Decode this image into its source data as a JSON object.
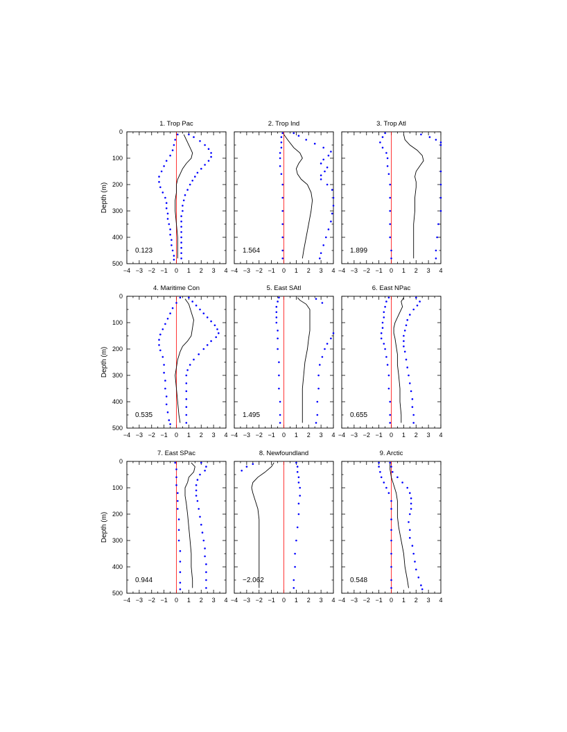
{
  "chart_data": {
    "type": "line",
    "layout": "3x3 panels",
    "ylabel": "Depth (m)",
    "xlim": [
      -4,
      4
    ],
    "ylim": [
      500,
      0
    ],
    "x_ticks": [
      -4,
      -3,
      -2,
      -1,
      0,
      1,
      2,
      3,
      4
    ],
    "y_ticks": [
      0,
      100,
      200,
      300,
      400,
      500
    ],
    "colors": {
      "mean": "#000000",
      "bounds": "#0000ff",
      "zero_line": "#ff0000"
    },
    "panels": [
      {
        "title": "1. Trop Pac",
        "value_label": "0.123",
        "mean": {
          "depth": [
            10,
            30,
            60,
            80,
            100,
            120,
            140,
            160,
            180,
            200,
            230,
            260,
            300,
            350,
            400,
            450,
            480
          ],
          "value": [
            0.6,
            0.8,
            1.1,
            1.3,
            1.2,
            0.8,
            0.5,
            0.3,
            0.1,
            0.0,
            0.0,
            -0.1,
            -0.1,
            0.0,
            0.1,
            0.1,
            0.1
          ]
        },
        "upper": {
          "depth": [
            10,
            20,
            35,
            50,
            65,
            80,
            95,
            110,
            125,
            140,
            155,
            170,
            185,
            200,
            220,
            240,
            260,
            280,
            300,
            320,
            340,
            360,
            380,
            400,
            420,
            440,
            460,
            480
          ],
          "value": [
            1.0,
            1.4,
            1.9,
            2.3,
            2.6,
            2.8,
            2.8,
            2.6,
            2.3,
            2.0,
            1.7,
            1.5,
            1.3,
            1.1,
            0.9,
            0.7,
            0.6,
            0.5,
            0.5,
            0.4,
            0.4,
            0.4,
            0.4,
            0.4,
            0.4,
            0.4,
            0.4,
            0.4
          ]
        },
        "lower": {
          "depth": [
            10,
            30,
            50,
            70,
            90,
            110,
            130,
            150,
            170,
            190,
            210,
            230,
            250,
            270,
            290,
            310,
            330,
            350,
            370,
            390,
            410,
            430,
            450,
            470,
            485
          ],
          "value": [
            0.1,
            -0.1,
            -0.2,
            -0.3,
            -0.5,
            -0.8,
            -1.0,
            -1.2,
            -1.4,
            -1.4,
            -1.3,
            -1.1,
            -0.9,
            -0.8,
            -0.8,
            -0.7,
            -0.7,
            -0.6,
            -0.5,
            -0.5,
            -0.4,
            -0.4,
            -0.3,
            -0.2,
            -0.2
          ]
        }
      },
      {
        "title": "2. Trop Ind",
        "value_label": "1.564",
        "mean": {
          "depth": [
            10,
            30,
            60,
            80,
            100,
            120,
            140,
            160,
            180,
            200,
            230,
            260,
            300,
            350,
            400,
            450,
            480
          ],
          "value": [
            0.0,
            0.3,
            0.8,
            1.3,
            1.5,
            1.2,
            1.0,
            1.1,
            1.4,
            1.9,
            2.2,
            2.3,
            2.2,
            2.0,
            1.8,
            1.6,
            1.5
          ]
        },
        "upper": {
          "depth": [
            5,
            15,
            30,
            45,
            60,
            75,
            90,
            105,
            120,
            135,
            150,
            165,
            180,
            200,
            220,
            250,
            280,
            310,
            340,
            370,
            400,
            430,
            460,
            480
          ],
          "value": [
            0.8,
            1.2,
            1.8,
            2.5,
            3.2,
            3.8,
            3.6,
            3.2,
            3.0,
            3.5,
            3.3,
            3.0,
            3.0,
            3.5,
            3.9,
            4.0,
            4.0,
            3.9,
            3.8,
            3.6,
            3.4,
            3.2,
            3.0,
            2.9
          ]
        },
        "lower": {
          "depth": [
            5,
            20,
            40,
            60,
            80,
            100,
            130,
            160,
            200,
            250,
            300,
            350,
            400,
            450,
            480
          ],
          "value": [
            -0.1,
            -0.2,
            -0.2,
            -0.2,
            -0.3,
            -0.3,
            -0.3,
            -0.2,
            -0.1,
            -0.1,
            -0.1,
            -0.1,
            -0.1,
            -0.1,
            -0.1
          ]
        }
      },
      {
        "title": "3. Trop Atl",
        "value_label": "1.899",
        "mean": {
          "depth": [
            10,
            30,
            50,
            70,
            90,
            110,
            130,
            150,
            170,
            190,
            210,
            250,
            300,
            350,
            400,
            450,
            480
          ],
          "value": [
            1.0,
            1.1,
            1.5,
            2.1,
            2.5,
            2.6,
            2.3,
            2.0,
            1.9,
            2.0,
            2.0,
            1.9,
            1.9,
            1.8,
            1.8,
            1.8,
            1.8
          ]
        },
        "upper": {
          "depth": [
            10,
            20,
            30,
            40,
            50,
            150,
            200,
            250,
            300,
            350,
            400,
            450,
            480
          ],
          "value": [
            2.4,
            3.1,
            3.6,
            4.0,
            4.0,
            4.0,
            4.0,
            4.0,
            4.0,
            3.8,
            3.7,
            3.6,
            3.6
          ]
        },
        "lower": {
          "depth": [
            5,
            20,
            40,
            60,
            80,
            100,
            130,
            160,
            200,
            250,
            300,
            350,
            400,
            450,
            480
          ],
          "value": [
            -0.5,
            -0.7,
            -0.9,
            -0.7,
            -0.4,
            -0.3,
            -0.3,
            -0.2,
            -0.1,
            -0.1,
            -0.1,
            -0.1,
            -0.1,
            0.0,
            0.0
          ]
        }
      },
      {
        "title": "4. Maritime Con",
        "value_label": "0.535",
        "mean": {
          "depth": [
            10,
            30,
            60,
            90,
            120,
            150,
            170,
            190,
            210,
            240,
            270,
            300,
            350,
            400,
            450,
            480
          ],
          "value": [
            0.7,
            1.0,
            1.2,
            1.4,
            1.3,
            1.2,
            0.9,
            0.5,
            0.3,
            0.1,
            0.0,
            -0.1,
            0.0,
            0.1,
            0.2,
            0.3
          ]
        },
        "upper": {
          "depth": [
            5,
            20,
            35,
            50,
            65,
            80,
            95,
            110,
            125,
            140,
            155,
            170,
            185,
            200,
            220,
            240,
            260,
            280,
            300,
            330,
            360,
            390,
            420,
            450,
            480
          ],
          "value": [
            1.0,
            1.3,
            1.6,
            1.9,
            2.2,
            2.5,
            2.8,
            3.1,
            3.3,
            3.4,
            3.2,
            2.8,
            2.5,
            2.2,
            1.8,
            1.4,
            1.1,
            0.9,
            0.8,
            0.8,
            0.8,
            0.8,
            0.8,
            0.8,
            0.8
          ]
        },
        "lower": {
          "depth": [
            5,
            25,
            45,
            65,
            85,
            105,
            125,
            145,
            165,
            185,
            205,
            230,
            260,
            290,
            320,
            350,
            380,
            410,
            440,
            470,
            485
          ],
          "value": [
            0.3,
            0.0,
            -0.3,
            -0.5,
            -0.7,
            -0.9,
            -1.1,
            -1.3,
            -1.4,
            -1.4,
            -1.3,
            -1.1,
            -1.0,
            -1.0,
            -0.9,
            -0.9,
            -0.8,
            -0.8,
            -0.7,
            -0.6,
            -0.5
          ]
        }
      },
      {
        "title": "5. East SAtl",
        "value_label": "1.495",
        "mean": {
          "depth": [
            5,
            15,
            30,
            50,
            75,
            100,
            130,
            160,
            200,
            250,
            300,
            350,
            400,
            450,
            480
          ],
          "value": [
            1.1,
            1.3,
            1.8,
            2.1,
            2.1,
            2.1,
            2.1,
            2.0,
            1.9,
            1.7,
            1.6,
            1.5,
            1.5,
            1.5,
            1.5
          ]
        },
        "upper": {
          "depth": [
            10,
            25,
            140,
            160,
            180,
            200,
            230,
            260,
            300,
            350,
            400,
            450,
            480
          ],
          "value": [
            2.6,
            3.1,
            4.0,
            3.8,
            3.5,
            3.3,
            3.1,
            2.9,
            2.8,
            2.8,
            2.7,
            2.7,
            2.6
          ]
        },
        "lower": {
          "depth": [
            5,
            20,
            40,
            60,
            80,
            100,
            130,
            160,
            200,
            250,
            300,
            350,
            400,
            450,
            480
          ],
          "value": [
            -0.4,
            -0.5,
            -0.6,
            -0.6,
            -0.6,
            -0.6,
            -0.5,
            -0.5,
            -0.5,
            -0.4,
            -0.4,
            -0.4,
            -0.3,
            -0.3,
            -0.3
          ]
        }
      },
      {
        "title": "6. East NPac",
        "value_label": "0.655",
        "mean": {
          "depth": [
            5,
            20,
            40,
            60,
            80,
            100,
            120,
            140,
            160,
            190,
            220,
            260,
            300,
            350,
            400,
            450,
            480
          ],
          "value": [
            1.0,
            0.8,
            0.9,
            0.7,
            0.5,
            0.3,
            0.2,
            0.2,
            0.3,
            0.4,
            0.5,
            0.5,
            0.6,
            0.7,
            0.7,
            0.8,
            0.8
          ]
        },
        "upper": {
          "depth": [
            5,
            20,
            35,
            50,
            70,
            90,
            110,
            130,
            150,
            170,
            190,
            210,
            240,
            270,
            300,
            330,
            360,
            390,
            420,
            450,
            480
          ],
          "value": [
            2.0,
            2.3,
            2.1,
            1.8,
            1.5,
            1.3,
            1.2,
            1.1,
            1.0,
            1.0,
            1.0,
            1.1,
            1.2,
            1.3,
            1.4,
            1.5,
            1.6,
            1.7,
            1.7,
            1.8,
            1.8
          ]
        },
        "lower": {
          "depth": [
            5,
            20,
            40,
            60,
            80,
            100,
            120,
            140,
            160,
            180,
            200,
            230,
            260,
            300,
            350,
            400,
            450,
            480
          ],
          "value": [
            -0.2,
            -0.4,
            -0.5,
            -0.6,
            -0.6,
            -0.7,
            -0.7,
            -0.8,
            -0.8,
            -0.6,
            -0.5,
            -0.4,
            -0.3,
            -0.2,
            -0.2,
            -0.1,
            -0.1,
            -0.1
          ]
        }
      },
      {
        "title": "7. East SPac",
        "value_label": "0.944",
        "mean": {
          "depth": [
            5,
            20,
            40,
            60,
            80,
            100,
            130,
            160,
            200,
            250,
            300,
            350,
            400,
            450,
            480
          ],
          "value": [
            1.2,
            1.5,
            1.4,
            1.0,
            0.9,
            0.7,
            0.7,
            0.8,
            0.9,
            1.0,
            1.1,
            1.2,
            1.2,
            1.3,
            1.3
          ]
        },
        "upper": {
          "depth": [
            5,
            20,
            35,
            50,
            70,
            90,
            110,
            130,
            150,
            180,
            210,
            240,
            270,
            300,
            330,
            360,
            390,
            420,
            450,
            480
          ],
          "value": [
            2.0,
            2.4,
            2.3,
            1.9,
            1.7,
            1.6,
            1.6,
            1.6,
            1.7,
            1.8,
            1.9,
            2.0,
            2.1,
            2.2,
            2.3,
            2.3,
            2.4,
            2.4,
            2.4,
            2.4
          ]
        },
        "lower": {
          "depth": [
            5,
            30,
            60,
            90,
            120,
            150,
            180,
            220,
            260,
            300,
            340,
            380,
            420,
            460,
            485
          ],
          "value": [
            -0.1,
            0.0,
            0.0,
            0.0,
            0.1,
            0.1,
            0.1,
            0.2,
            0.2,
            0.2,
            0.3,
            0.3,
            0.3,
            0.3,
            0.3
          ]
        }
      },
      {
        "title": "8. Newfoundland",
        "value_label": "-2.062",
        "mean": {
          "depth": [
            5,
            20,
            40,
            60,
            80,
            100,
            120,
            150,
            180,
            220,
            260,
            300,
            350,
            400,
            450,
            480
          ],
          "value": [
            -0.8,
            -1.0,
            -1.5,
            -2.1,
            -2.5,
            -2.6,
            -2.5,
            -2.3,
            -2.1,
            -2.0,
            -2.0,
            -2.0,
            -2.0,
            -2.0,
            -2.0,
            -2.0
          ]
        },
        "upper": {
          "depth": [
            5,
            20,
            40,
            60,
            80,
            100,
            130,
            160,
            200,
            250,
            300,
            350,
            400,
            450,
            480
          ],
          "value": [
            1.0,
            1.1,
            1.1,
            1.2,
            1.2,
            1.3,
            1.3,
            1.2,
            1.2,
            1.1,
            1.0,
            0.9,
            0.9,
            0.8,
            0.8
          ]
        },
        "lower": {
          "depth": [
            10,
            20,
            35
          ],
          "value": [
            -2.5,
            -3.0,
            -3.4
          ]
        }
      },
      {
        "title": "9. Arctic",
        "value_label": "0.548",
        "mean": {
          "depth": [
            5,
            30,
            60,
            90,
            120,
            150,
            180,
            210,
            250,
            300,
            350,
            400,
            450,
            480
          ],
          "value": [
            -0.1,
            -0.1,
            0.0,
            0.2,
            0.4,
            0.5,
            0.5,
            0.5,
            0.6,
            0.8,
            1.0,
            1.1,
            1.3,
            1.4
          ]
        },
        "upper": {
          "depth": [
            5,
            20,
            40,
            60,
            80,
            100,
            120,
            140,
            160,
            180,
            200,
            230,
            260,
            290,
            320,
            350,
            380,
            410,
            440,
            470,
            485
          ],
          "value": [
            -0.1,
            0.0,
            0.1,
            0.5,
            0.9,
            1.3,
            1.5,
            1.6,
            1.6,
            1.6,
            1.5,
            1.4,
            1.5,
            1.5,
            1.7,
            1.8,
            1.9,
            2.0,
            2.2,
            2.4,
            2.5
          ]
        },
        "lower": {
          "depth": [
            5,
            20,
            40,
            60,
            80,
            100,
            120,
            150,
            180,
            220,
            260,
            300,
            350,
            400,
            450,
            480
          ],
          "value": [
            -1.0,
            -1.0,
            -0.9,
            -0.8,
            -0.6,
            -0.4,
            -0.2,
            0.0,
            0.0,
            0.0,
            0.0,
            0.0,
            0.0,
            0.0,
            0.0,
            0.0
          ]
        }
      }
    ]
  }
}
